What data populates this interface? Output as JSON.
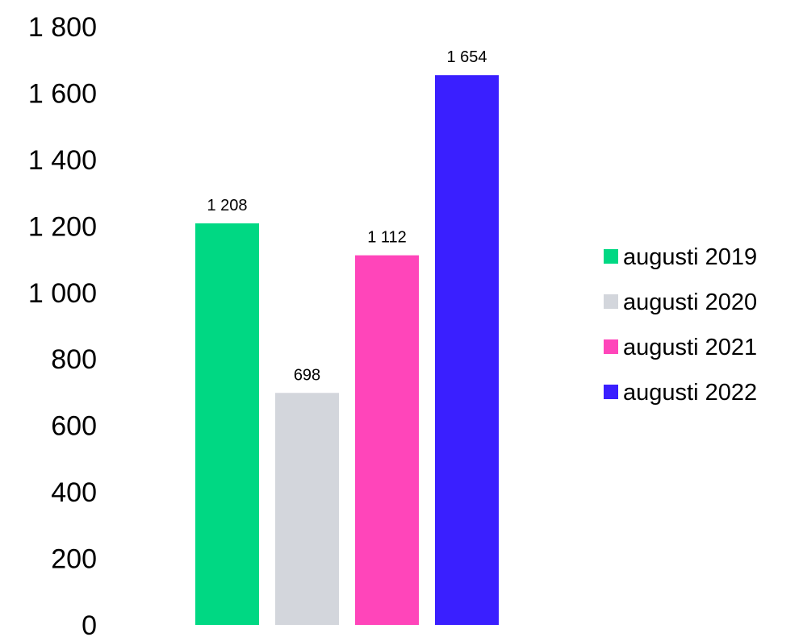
{
  "chart_data": {
    "type": "bar",
    "series": [
      {
        "name": "augusti 2019",
        "value": 1208,
        "value_label": "1 208",
        "color": "#00d883"
      },
      {
        "name": "augusti 2020",
        "value": 698,
        "value_label": "698",
        "color": "#d3d6dc"
      },
      {
        "name": "augusti 2021",
        "value": 1112,
        "value_label": "1 112",
        "color": "#ff45ba"
      },
      {
        "name": "augusti 2022",
        "value": 1654,
        "value_label": "1 654",
        "color": "#3a1fff"
      }
    ],
    "y_ticks": [
      {
        "value": 0,
        "label": "0"
      },
      {
        "value": 200,
        "label": "200"
      },
      {
        "value": 400,
        "label": "400"
      },
      {
        "value": 600,
        "label": "600"
      },
      {
        "value": 800,
        "label": "800"
      },
      {
        "value": 1000,
        "label": "1 000"
      },
      {
        "value": 1200,
        "label": "1 200"
      },
      {
        "value": 1400,
        "label": "1 400"
      },
      {
        "value": 1600,
        "label": "1 600"
      },
      {
        "value": 1800,
        "label": "1 800"
      }
    ],
    "ylim": [
      0,
      1800
    ],
    "grid": false,
    "legend_position": "right"
  }
}
